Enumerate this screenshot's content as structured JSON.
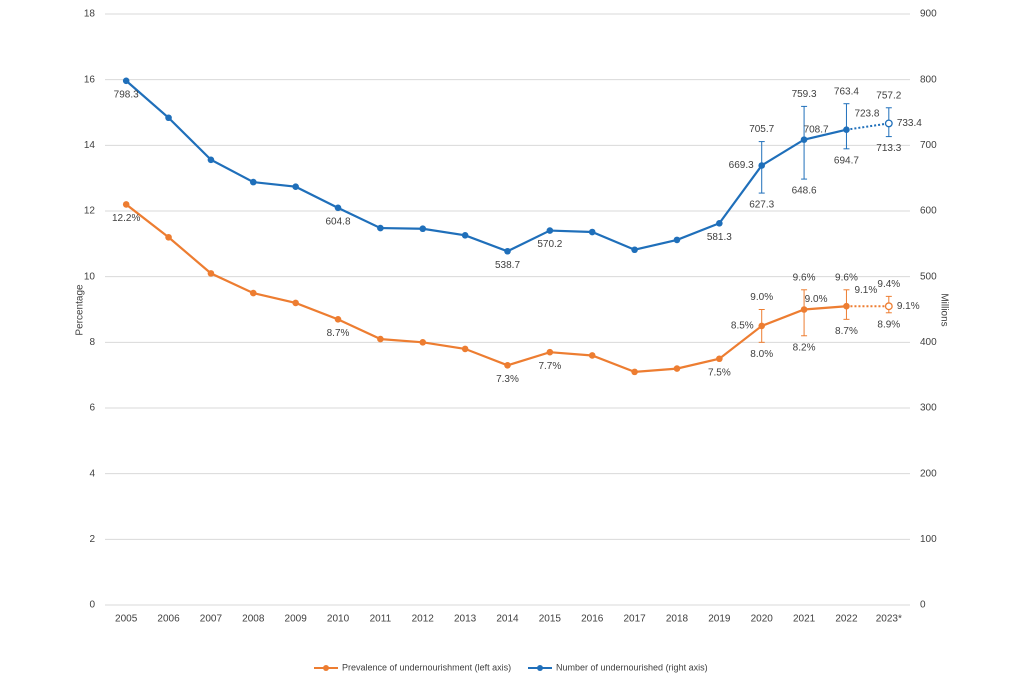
{
  "chart_data": {
    "type": "line",
    "categories": [
      "2005",
      "2006",
      "2007",
      "2008",
      "2009",
      "2010",
      "2011",
      "2012",
      "2013",
      "2014",
      "2015",
      "2016",
      "2017",
      "2018",
      "2019",
      "2020",
      "2021",
      "2022",
      "2023*"
    ],
    "ylabel": "Percentage",
    "y2label": "Millions",
    "ylim": [
      0,
      18
    ],
    "yticks": [
      0,
      2,
      4,
      6,
      8,
      10,
      12,
      14,
      16,
      18
    ],
    "y2lim": [
      0,
      900
    ],
    "y2ticks": [
      0,
      100,
      200,
      300,
      400,
      500,
      600,
      700,
      800,
      900
    ],
    "grid": true,
    "legend": "bottom",
    "dashed_last_segment": true,
    "series": [
      {
        "name": "Prevalence of undernourishment (left axis)",
        "color": "#ed7d31",
        "values": [
          12.2,
          11.2,
          10.1,
          9.5,
          9.2,
          8.7,
          8.1,
          8.0,
          7.8,
          7.3,
          7.7,
          7.6,
          7.1,
          7.2,
          7.5,
          8.5,
          9.0,
          9.1,
          9.1
        ],
        "value_labels": [
          "12.2%",
          null,
          null,
          null,
          null,
          "8.7%",
          null,
          null,
          null,
          "7.3%",
          "7.7%",
          null,
          null,
          null,
          "7.5%",
          "8.5%",
          "9.0%",
          "9.1%",
          "9.1%"
        ],
        "upper": [
          null,
          null,
          null,
          null,
          null,
          null,
          null,
          null,
          null,
          null,
          null,
          null,
          null,
          null,
          null,
          9.0,
          9.6,
          9.6,
          9.4
        ],
        "upper_labels": [
          null,
          null,
          null,
          null,
          null,
          null,
          null,
          null,
          null,
          null,
          null,
          null,
          null,
          null,
          null,
          "9.0%",
          "9.6%",
          "9.6%",
          "9.4%"
        ],
        "lower": [
          null,
          null,
          null,
          null,
          null,
          null,
          null,
          null,
          null,
          null,
          null,
          null,
          null,
          null,
          null,
          8.0,
          8.2,
          8.7,
          8.9
        ],
        "lower_labels": [
          null,
          null,
          null,
          null,
          null,
          null,
          null,
          null,
          null,
          null,
          null,
          null,
          null,
          null,
          null,
          "8.0%",
          "8.2%",
          "8.7%",
          "8.9%"
        ]
      },
      {
        "name": "Number of undernourished (right axis)",
        "color": "#1f6fba",
        "axis": "y2",
        "values": [
          798.3,
          742,
          678,
          644,
          637,
          604.8,
          574,
          573,
          563,
          538.7,
          570.2,
          568,
          541,
          556,
          581.3,
          669.3,
          708.7,
          723.8,
          733.4
        ],
        "value_labels": [
          "798.3",
          null,
          null,
          null,
          null,
          "604.8",
          null,
          null,
          null,
          "538.7",
          "570.2",
          null,
          null,
          null,
          "581.3",
          "669.3",
          "708.7",
          "723.8",
          "733.4"
        ],
        "upper": [
          null,
          null,
          null,
          null,
          null,
          null,
          null,
          null,
          null,
          null,
          null,
          null,
          null,
          null,
          null,
          705.7,
          759.3,
          763.4,
          757.2
        ],
        "upper_labels": [
          null,
          null,
          null,
          null,
          null,
          null,
          null,
          null,
          null,
          null,
          null,
          null,
          null,
          null,
          null,
          "705.7",
          "759.3",
          "763.4",
          "757.2"
        ],
        "lower": [
          null,
          null,
          null,
          null,
          null,
          null,
          null,
          null,
          null,
          null,
          null,
          null,
          null,
          null,
          null,
          627.3,
          648.6,
          694.7,
          713.3
        ],
        "lower_labels": [
          null,
          null,
          null,
          null,
          null,
          null,
          null,
          null,
          null,
          null,
          null,
          null,
          null,
          null,
          null,
          "627.3",
          "648.6",
          "694.7",
          "713.3"
        ]
      }
    ]
  }
}
